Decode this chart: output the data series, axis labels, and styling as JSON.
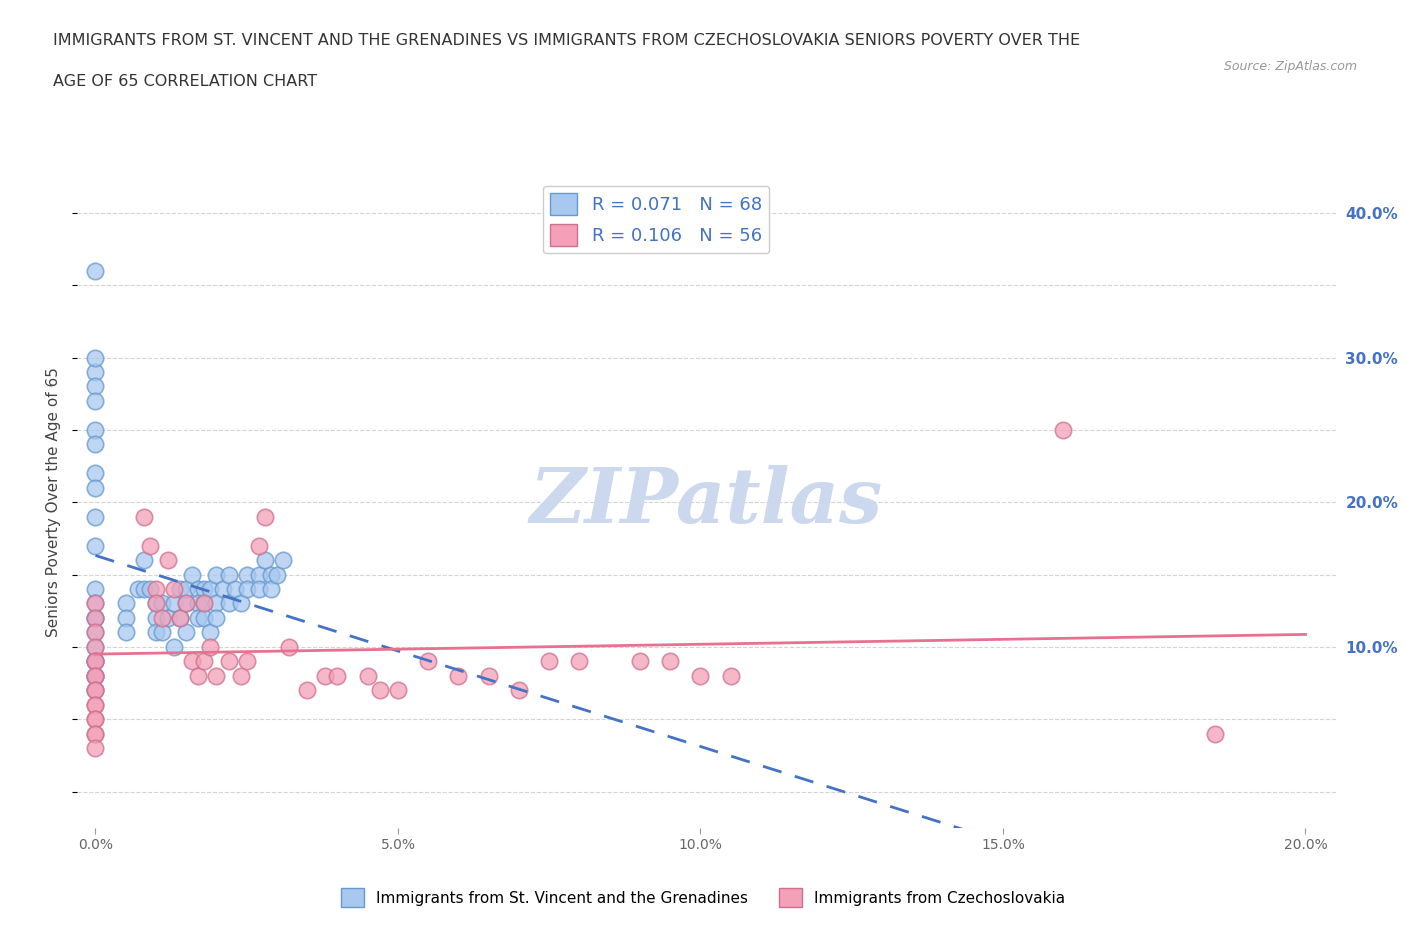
{
  "title_line1": "IMMIGRANTS FROM ST. VINCENT AND THE GRENADINES VS IMMIGRANTS FROM CZECHOSLOVAKIA SENIORS POVERTY OVER THE",
  "title_line2": "AGE OF 65 CORRELATION CHART",
  "source": "Source: ZipAtlas.com",
  "ylabel": "Seniors Poverty Over the Age of 65",
  "legend_label1": "Immigrants from St. Vincent and the Grenadines",
  "legend_label2": "Immigrants from Czechoslovakia",
  "R1": 0.071,
  "N1": 68,
  "R2": 0.106,
  "N2": 56,
  "color1": "#a8c8f0",
  "color2": "#f4a0b8",
  "trendline1_color": "#4472c4",
  "trendline2_color": "#e87090",
  "background_color": "#ffffff",
  "grid_color": "#d0d0d0",
  "watermark": "ZIPatlas",
  "watermark_color": "#ccd8ee",
  "xlim": [
    -0.003,
    0.205
  ],
  "ylim": [
    -0.025,
    0.425
  ],
  "xticks": [
    0.0,
    0.05,
    0.1,
    0.15,
    0.2
  ],
  "xtick_labels": [
    "0.0%",
    "5.0%",
    "10.0%",
    "15.0%",
    "20.0%"
  ],
  "ytick_values_right": [
    0.1,
    0.2,
    0.3,
    0.4
  ],
  "ytick_labels_right": [
    "10.0%",
    "20.0%",
    "30.0%",
    "40.0%"
  ],
  "sv_x": [
    0.0,
    0.0,
    0.0,
    0.0,
    0.0,
    0.0,
    0.0,
    0.0,
    0.0,
    0.0,
    0.0,
    0.0,
    0.0,
    0.0,
    0.0,
    0.0,
    0.0,
    0.0,
    0.0,
    0.0,
    0.0,
    0.0,
    0.005,
    0.005,
    0.005,
    0.007,
    0.008,
    0.008,
    0.009,
    0.01,
    0.01,
    0.01,
    0.011,
    0.011,
    0.012,
    0.013,
    0.013,
    0.014,
    0.014,
    0.015,
    0.015,
    0.015,
    0.016,
    0.017,
    0.017,
    0.017,
    0.018,
    0.018,
    0.018,
    0.019,
    0.019,
    0.02,
    0.02,
    0.02,
    0.021,
    0.022,
    0.022,
    0.023,
    0.024,
    0.025,
    0.025,
    0.027,
    0.027,
    0.028,
    0.029,
    0.029,
    0.03,
    0.031
  ],
  "sv_y": [
    0.36,
    0.29,
    0.28,
    0.3,
    0.27,
    0.25,
    0.24,
    0.22,
    0.21,
    0.19,
    0.17,
    0.14,
    0.13,
    0.12,
    0.12,
    0.11,
    0.1,
    0.09,
    0.09,
    0.08,
    0.08,
    0.07,
    0.13,
    0.12,
    0.11,
    0.14,
    0.16,
    0.14,
    0.14,
    0.13,
    0.12,
    0.11,
    0.13,
    0.11,
    0.12,
    0.1,
    0.13,
    0.14,
    0.12,
    0.13,
    0.14,
    0.11,
    0.15,
    0.14,
    0.13,
    0.12,
    0.14,
    0.13,
    0.12,
    0.14,
    0.11,
    0.15,
    0.13,
    0.12,
    0.14,
    0.13,
    0.15,
    0.14,
    0.13,
    0.15,
    0.14,
    0.15,
    0.14,
    0.16,
    0.15,
    0.14,
    0.15,
    0.16
  ],
  "cz_x": [
    0.0,
    0.0,
    0.0,
    0.0,
    0.0,
    0.0,
    0.0,
    0.0,
    0.0,
    0.0,
    0.0,
    0.0,
    0.0,
    0.0,
    0.0,
    0.0,
    0.0,
    0.008,
    0.009,
    0.01,
    0.01,
    0.011,
    0.012,
    0.013,
    0.014,
    0.015,
    0.016,
    0.017,
    0.018,
    0.018,
    0.019,
    0.02,
    0.022,
    0.024,
    0.025,
    0.027,
    0.028,
    0.032,
    0.035,
    0.038,
    0.04,
    0.045,
    0.047,
    0.05,
    0.055,
    0.06,
    0.065,
    0.07,
    0.075,
    0.08,
    0.09,
    0.095,
    0.1,
    0.105,
    0.16,
    0.185
  ],
  "cz_y": [
    0.13,
    0.12,
    0.11,
    0.1,
    0.09,
    0.09,
    0.08,
    0.08,
    0.07,
    0.07,
    0.06,
    0.06,
    0.05,
    0.05,
    0.04,
    0.04,
    0.03,
    0.19,
    0.17,
    0.14,
    0.13,
    0.12,
    0.16,
    0.14,
    0.12,
    0.13,
    0.09,
    0.08,
    0.13,
    0.09,
    0.1,
    0.08,
    0.09,
    0.08,
    0.09,
    0.17,
    0.19,
    0.1,
    0.07,
    0.08,
    0.08,
    0.08,
    0.07,
    0.07,
    0.09,
    0.08,
    0.08,
    0.07,
    0.09,
    0.09,
    0.09,
    0.09,
    0.08,
    0.08,
    0.25,
    0.04
  ]
}
